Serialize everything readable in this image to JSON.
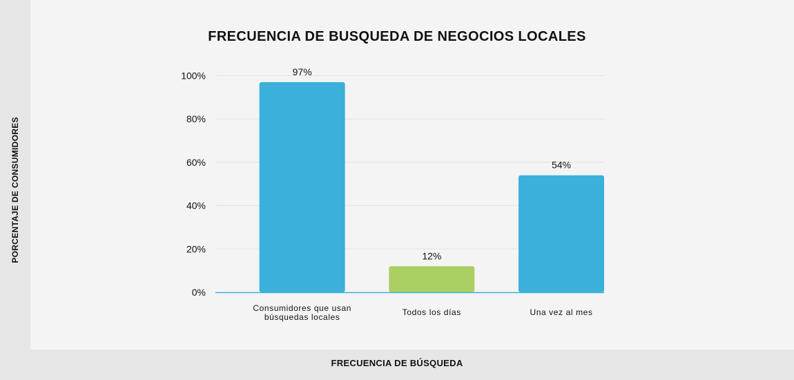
{
  "chart_data": {
    "type": "bar",
    "title": "FRECUENCIA DE BUSQUEDA DE NEGOCIOS LOCALES",
    "xlabel": "FRECUENCIA DE BÚSQUEDA",
    "ylabel": "PORCENTAJE DE CONSUMIDORES",
    "categories": [
      "Consumidores que usan búsquedas locales",
      "Todos los días",
      "Una vez al mes"
    ],
    "category_lines": [
      [
        "Consumidores que usan",
        "búsquedas locales"
      ],
      [
        "Todos los días"
      ],
      [
        "Una vez al mes"
      ]
    ],
    "values": [
      97,
      12,
      54
    ],
    "data_labels": [
      "97%",
      "12%",
      "54%"
    ],
    "bar_colors": [
      "#3bb0da",
      "#abcf62",
      "#3bb0da"
    ],
    "ylim": [
      0,
      100
    ],
    "y_ticks": [
      0,
      20,
      40,
      60,
      80,
      100
    ],
    "y_tick_labels": [
      "0%",
      "20%",
      "40%",
      "60%",
      "80%",
      "100%"
    ],
    "grid": true,
    "legend": "none"
  }
}
